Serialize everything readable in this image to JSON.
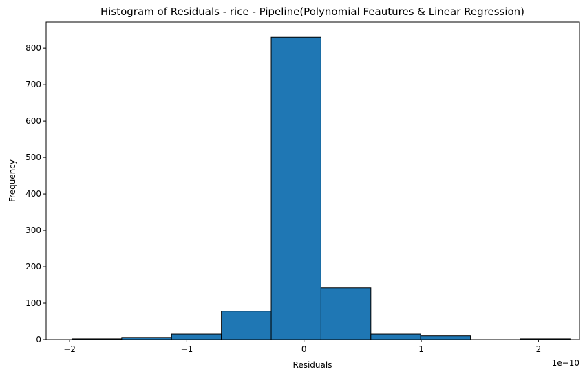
{
  "chart_data": {
    "type": "bar",
    "title": "Histogram of Residuals - rice  - Pipeline(Polynomial Feautures & Linear Regression)",
    "xlabel": "Residuals",
    "ylabel": "Frequency",
    "x_offset_label": "1e−10",
    "xlim": [
      -2.2,
      2.35
    ],
    "ylim": [
      0,
      872
    ],
    "x_ticks": [
      -2,
      -1,
      0,
      1,
      2
    ],
    "x_tick_labels": [
      "−2",
      "−1",
      "0",
      "1",
      "2"
    ],
    "y_ticks": [
      0,
      100,
      200,
      300,
      400,
      500,
      600,
      700,
      800
    ],
    "y_tick_labels": [
      "0",
      "100",
      "200",
      "300",
      "400",
      "500",
      "600",
      "700",
      "800"
    ],
    "bin_edges": [
      -1.98,
      -1.555,
      -1.13,
      -0.705,
      -0.28,
      0.145,
      0.57,
      0.995,
      1.42,
      1.845,
      2.27
    ],
    "values": [
      2,
      6,
      15,
      78,
      830,
      142,
      15,
      10,
      0,
      2
    ],
    "grid": false,
    "bar_color": "#1f77b4",
    "edge_color": "#000000"
  }
}
